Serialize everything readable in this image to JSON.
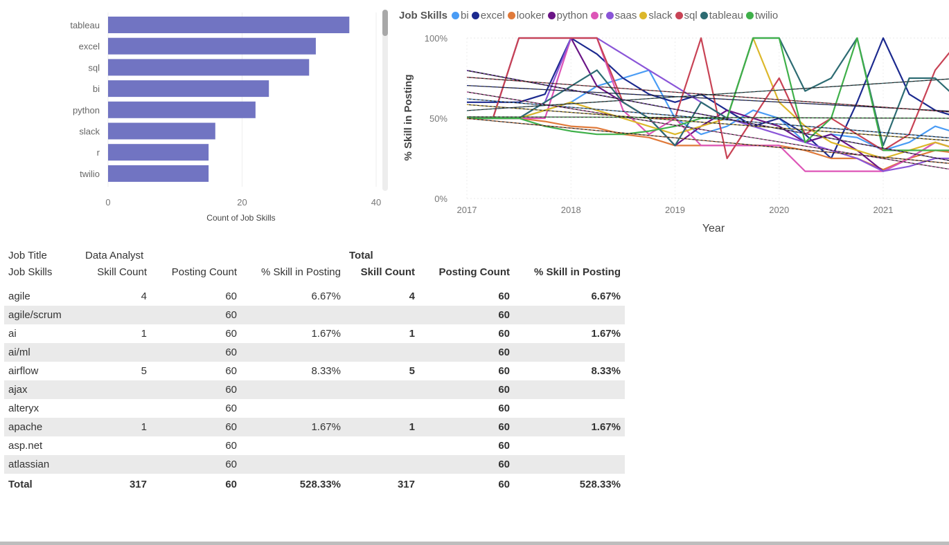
{
  "colors": {
    "bar": "#7174c2",
    "bi": "#4a9cf5",
    "excel": "#1c2a8f",
    "looker": "#e07a3a",
    "python": "#6a1586",
    "r": "#dd55b7",
    "saas": "#8a55d8",
    "slack": "#dcb72a",
    "sql": "#c84355",
    "tableau": "#2d6c73",
    "twilio": "#3fb04a"
  },
  "chart_data": [
    {
      "type": "bar",
      "orientation": "horizontal",
      "categories": [
        "tableau",
        "excel",
        "sql",
        "bi",
        "python",
        "slack",
        "r",
        "twilio"
      ],
      "values": [
        36,
        31,
        30,
        24,
        22,
        16,
        15,
        15
      ],
      "xlabel": "Count of Job Skills",
      "xlim": [
        0,
        40
      ],
      "xticks": [
        "0",
        "20",
        "40"
      ],
      "grid": true
    },
    {
      "type": "line",
      "legend_title": "Job Skills",
      "legend_position": "top",
      "xlabel": "Year",
      "ylabel": "% Skill in Posting",
      "xticks": [
        "2017",
        "2018",
        "2019",
        "2020",
        "2021"
      ],
      "yticks": [
        "0%",
        "50%",
        "100%"
      ],
      "ylim": [
        0,
        100
      ],
      "x": [
        2017,
        2017.25,
        2017.5,
        2017.75,
        2018,
        2018.25,
        2018.5,
        2018.75,
        2019,
        2019.25,
        2019.5,
        2019.75,
        2020,
        2020.25,
        2020.5,
        2020.75,
        2021,
        2021.25,
        2021.5,
        2021.75
      ],
      "series": [
        {
          "name": "bi",
          "values": [
            50,
            50,
            50,
            55,
            60,
            70,
            75,
            80,
            50,
            40,
            45,
            55,
            50,
            35,
            40,
            38,
            30,
            35,
            45,
            40
          ]
        },
        {
          "name": "excel",
          "values": [
            60,
            60,
            60,
            65,
            100,
            90,
            75,
            65,
            60,
            65,
            55,
            45,
            50,
            40,
            25,
            60,
            100,
            65,
            55,
            50
          ]
        },
        {
          "name": "looker",
          "values": [
            50,
            50,
            50,
            48,
            45,
            44,
            40,
            38,
            33,
            33,
            33,
            33,
            33,
            30,
            25,
            25,
            18,
            25,
            30,
            28
          ]
        },
        {
          "name": "python",
          "values": [
            50,
            50,
            100,
            100,
            100,
            70,
            60,
            50,
            33,
            45,
            55,
            50,
            45,
            35,
            40,
            30,
            17,
            25,
            35,
            30
          ]
        },
        {
          "name": "r",
          "values": [
            50,
            50,
            50,
            50,
            100,
            100,
            55,
            40,
            50,
            33,
            33,
            33,
            33,
            17,
            17,
            17,
            17,
            25,
            35,
            30
          ]
        },
        {
          "name": "saas",
          "values": [
            50,
            50,
            50,
            60,
            100,
            100,
            90,
            80,
            70,
            60,
            50,
            45,
            40,
            35,
            30,
            25,
            17,
            20,
            25,
            25
          ]
        },
        {
          "name": "slack",
          "values": [
            50,
            50,
            50,
            55,
            60,
            55,
            50,
            45,
            40,
            45,
            50,
            100,
            60,
            45,
            35,
            30,
            25,
            30,
            35,
            30
          ]
        },
        {
          "name": "sql",
          "values": [
            50,
            50,
            100,
            100,
            100,
            100,
            60,
            50,
            50,
            100,
            25,
            50,
            75,
            40,
            50,
            40,
            30,
            40,
            80,
            100
          ]
        },
        {
          "name": "tableau",
          "values": [
            50,
            50,
            50,
            60,
            70,
            80,
            60,
            50,
            33,
            60,
            50,
            100,
            100,
            67,
            75,
            100,
            33,
            75,
            75,
            60
          ]
        },
        {
          "name": "twilio",
          "values": [
            50,
            50,
            50,
            45,
            42,
            40,
            40,
            42,
            45,
            50,
            50,
            100,
            100,
            35,
            50,
            100,
            30,
            30,
            30,
            30
          ]
        }
      ]
    }
  ],
  "matrix": {
    "title_label": "Job Title",
    "title_value": "Data Analyst",
    "total_label": "Total",
    "row_header": "Job Skills",
    "columns": [
      "Skill Count",
      "Posting Count",
      "% Skill in Posting"
    ],
    "rows": [
      {
        "skill": "agile",
        "skill_count": "4",
        "posting_count": "60",
        "pct": "6.67%",
        "t_skill_count": "4",
        "t_posting_count": "60",
        "t_pct": "6.67%"
      },
      {
        "skill": "agile/scrum",
        "skill_count": "",
        "posting_count": "60",
        "pct": "",
        "t_skill_count": "",
        "t_posting_count": "60",
        "t_pct": ""
      },
      {
        "skill": "ai",
        "skill_count": "1",
        "posting_count": "60",
        "pct": "1.67%",
        "t_skill_count": "1",
        "t_posting_count": "60",
        "t_pct": "1.67%"
      },
      {
        "skill": "ai/ml",
        "skill_count": "",
        "posting_count": "60",
        "pct": "",
        "t_skill_count": "",
        "t_posting_count": "60",
        "t_pct": ""
      },
      {
        "skill": "airflow",
        "skill_count": "5",
        "posting_count": "60",
        "pct": "8.33%",
        "t_skill_count": "5",
        "t_posting_count": "60",
        "t_pct": "8.33%"
      },
      {
        "skill": "ajax",
        "skill_count": "",
        "posting_count": "60",
        "pct": "",
        "t_skill_count": "",
        "t_posting_count": "60",
        "t_pct": ""
      },
      {
        "skill": "alteryx",
        "skill_count": "",
        "posting_count": "60",
        "pct": "",
        "t_skill_count": "",
        "t_posting_count": "60",
        "t_pct": ""
      },
      {
        "skill": "apache",
        "skill_count": "1",
        "posting_count": "60",
        "pct": "1.67%",
        "t_skill_count": "1",
        "t_posting_count": "60",
        "t_pct": "1.67%"
      },
      {
        "skill": "asp.net",
        "skill_count": "",
        "posting_count": "60",
        "pct": "",
        "t_skill_count": "",
        "t_posting_count": "60",
        "t_pct": ""
      },
      {
        "skill": "atlassian",
        "skill_count": "",
        "posting_count": "60",
        "pct": "",
        "t_skill_count": "",
        "t_posting_count": "60",
        "t_pct": ""
      }
    ],
    "total_row": {
      "skill": "Total",
      "skill_count": "317",
      "posting_count": "60",
      "pct": "528.33%",
      "t_skill_count": "317",
      "t_posting_count": "60",
      "t_pct": "528.33%"
    }
  }
}
